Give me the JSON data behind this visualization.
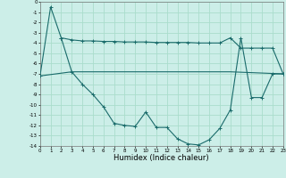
{
  "xlabel": "Humidex (Indice chaleur)",
  "bg_color": "#cceee8",
  "line_color": "#1a6b6b",
  "grid_color": "#aaddcc",
  "xlim": [
    0,
    23
  ],
  "ylim": [
    -14,
    0
  ],
  "xticks": [
    0,
    1,
    2,
    3,
    4,
    5,
    6,
    7,
    8,
    9,
    10,
    11,
    12,
    13,
    14,
    15,
    16,
    17,
    18,
    19,
    20,
    21,
    22,
    23
  ],
  "yticks": [
    0,
    -1,
    -2,
    -3,
    -4,
    -5,
    -6,
    -7,
    -8,
    -9,
    -10,
    -11,
    -12,
    -13,
    -14
  ],
  "line1_x": [
    2,
    3,
    4,
    5,
    6,
    7,
    8,
    9,
    10,
    11,
    12,
    13,
    14,
    15,
    16,
    17,
    18,
    19,
    20,
    21,
    22,
    23
  ],
  "line1_y": [
    -3.5,
    -3.7,
    -3.8,
    -3.8,
    -3.85,
    -3.85,
    -3.9,
    -3.9,
    -3.9,
    -3.95,
    -3.95,
    -3.95,
    -3.95,
    -4.0,
    -4.0,
    -4.0,
    -3.5,
    -4.5,
    -4.5,
    -4.5,
    -4.5,
    -7.0
  ],
  "line2_x": [
    0,
    3,
    18,
    23
  ],
  "line2_y": [
    -7.2,
    -6.8,
    -6.8,
    -7.0
  ],
  "line3_x": [
    0,
    1,
    2,
    3,
    4,
    5,
    6,
    7,
    8,
    9,
    10,
    11,
    12,
    13,
    14,
    15,
    16,
    17,
    18,
    19,
    20,
    21,
    22,
    23
  ],
  "line3_y": [
    -7.2,
    -0.5,
    -3.5,
    -6.8,
    -8.0,
    -9.0,
    -10.2,
    -11.8,
    -12.0,
    -12.1,
    -10.7,
    -12.2,
    -12.2,
    -13.3,
    -13.8,
    -13.9,
    -13.4,
    -12.3,
    -10.5,
    -3.5,
    -9.3,
    -9.3,
    -7.0,
    -7.0
  ]
}
